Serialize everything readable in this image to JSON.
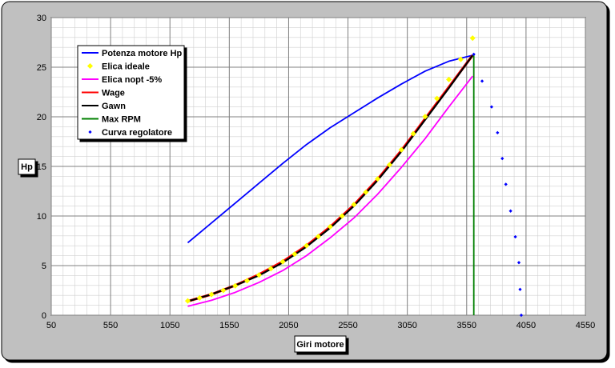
{
  "chart_data": {
    "type": "line",
    "xlabel": "Giri motore",
    "ylabel": "Hp",
    "xlim": [
      50,
      4550
    ],
    "ylim": [
      0,
      30
    ],
    "xticks": [
      50,
      550,
      1050,
      1550,
      2050,
      2550,
      3050,
      3550,
      4050,
      4550
    ],
    "yticks": [
      0,
      5,
      10,
      15,
      20,
      25,
      30
    ],
    "x_minor_step": 100,
    "y_minor_step": 1,
    "grid": true,
    "legend_position": "top-left",
    "series": [
      {
        "name": "Potenza motore Hp",
        "color": "#0000ff",
        "style": "line",
        "x": [
          1200,
          1400,
          1600,
          1800,
          2000,
          2200,
          2400,
          2600,
          2800,
          3000,
          3200,
          3400,
          3600
        ],
        "y": [
          7.3,
          9.3,
          11.3,
          13.3,
          15.3,
          17.2,
          18.9,
          20.4,
          21.9,
          23.3,
          24.6,
          25.6,
          26.2
        ]
      },
      {
        "name": "Elica ideale",
        "color": "#ffff00",
        "style": "markers",
        "x": [
          1200,
          1300,
          1400,
          1500,
          1600,
          1700,
          1800,
          1900,
          2000,
          2100,
          2200,
          2300,
          2400,
          2500,
          2600,
          2700,
          2800,
          2900,
          3000,
          3100,
          3200,
          3300,
          3400,
          3500,
          3600
        ],
        "y": [
          1.44,
          1.74,
          2.09,
          2.5,
          2.96,
          3.47,
          4.05,
          4.69,
          5.39,
          6.16,
          7.01,
          7.93,
          8.92,
          10.0,
          11.16,
          12.4,
          13.74,
          15.16,
          16.68,
          18.3,
          20.02,
          21.84,
          23.76,
          25.79,
          27.93
        ]
      },
      {
        "name": "Elica nopt -5%",
        "color": "#ff00ff",
        "style": "line",
        "x": [
          1200,
          1400,
          1600,
          1800,
          2000,
          2200,
          2400,
          2600,
          2800,
          3000,
          3200,
          3400,
          3600
        ],
        "y": [
          0.9,
          1.5,
          2.3,
          3.3,
          4.5,
          6.0,
          7.8,
          9.8,
          12.2,
          14.9,
          17.8,
          21.0,
          24.1
        ]
      },
      {
        "name": "Wage",
        "color": "#ff0000",
        "style": "line",
        "x": [
          1200,
          1400,
          1600,
          1800,
          2000,
          2200,
          2400,
          2600,
          2800,
          3000,
          3200,
          3400,
          3600
        ],
        "y": [
          1.4,
          2.1,
          3.0,
          4.1,
          5.4,
          7.0,
          8.9,
          11.1,
          13.7,
          16.6,
          19.8,
          23.0,
          26.2
        ]
      },
      {
        "name": "Gawn",
        "color": "#000000",
        "style": "line",
        "x": [
          1200,
          1400,
          1600,
          1800,
          2000,
          2200,
          2400,
          2600,
          2800,
          3000,
          3200,
          3400,
          3600
        ],
        "y": [
          1.4,
          2.1,
          3.0,
          4.0,
          5.3,
          6.9,
          8.8,
          11.0,
          13.6,
          16.5,
          19.7,
          22.9,
          26.2
        ]
      },
      {
        "name": "Max RPM",
        "color": "#008000",
        "style": "line",
        "x": [
          3610,
          3610
        ],
        "y": [
          0,
          26.3
        ]
      },
      {
        "name": "Curva regolatore",
        "color": "#0000ff",
        "style": "dots",
        "x": [
          3610,
          3680,
          3760,
          3810,
          3850,
          3880,
          3920,
          3960,
          3990,
          4000,
          4010
        ],
        "y": [
          26.3,
          23.6,
          21.0,
          18.4,
          15.8,
          13.2,
          10.5,
          7.9,
          5.3,
          2.6,
          0
        ]
      }
    ]
  }
}
